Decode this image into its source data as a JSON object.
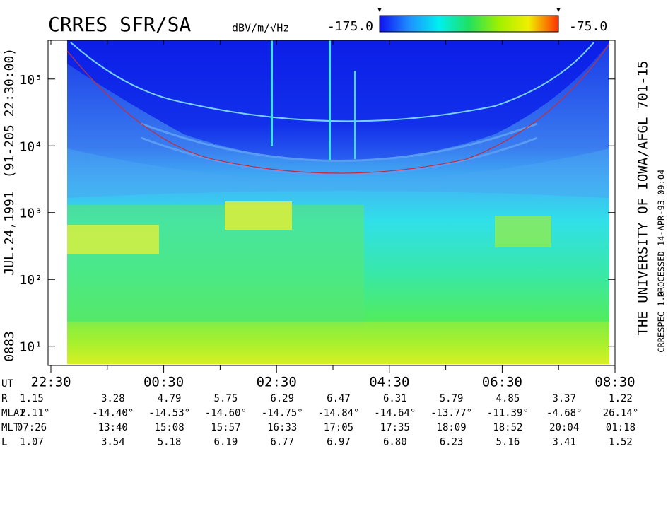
{
  "chart_data": {
    "type": "spectrogram",
    "title": "CRRES SFR/SA",
    "colorbar": {
      "label": "dBV/m/√Hz",
      "clim": [
        -175,
        -75
      ],
      "ticks": [
        {
          "value": -175,
          "label": "-175.0"
        },
        {
          "value": -75,
          "label": "-75.0"
        }
      ],
      "colors": [
        "#1010f0",
        "#1e90ff",
        "#00f0f0",
        "#20e060",
        "#a0f000",
        "#f0f000",
        "#ff3000"
      ]
    },
    "left_labels": [
      "0883",
      "JUL.24,1991",
      "(91-205 22:30:00)"
    ],
    "right_labels": [
      "THE UNIVERSITY OF IOWA/AFGL 701-15",
      "PROCESSED 14-APR-93  09:04",
      "CRRESPEC 1.0"
    ],
    "log_y": true,
    "ylim": [
      5.4,
      380000
    ],
    "yticks": [
      {
        "value": 10,
        "label": "10¹"
      },
      {
        "value": 100,
        "label": "10²"
      },
      {
        "value": 1000,
        "label": "10³"
      },
      {
        "value": 10000,
        "label": "10⁴"
      },
      {
        "value": 100000,
        "label": "10⁵"
      }
    ],
    "categories": [
      "22:30",
      null,
      "00:30",
      null,
      "02:30",
      null,
      "04:30",
      null,
      "06:30",
      null,
      "08:30"
    ],
    "ephemeris": {
      "time_label": "UT",
      "rows": [
        {
          "name": "R",
          "values": [
            "1.15",
            "3.28",
            "4.79",
            "5.75",
            "6.29",
            "6.47",
            "6.31",
            "5.79",
            "4.85",
            "3.37",
            "1.22"
          ]
        },
        {
          "name": "MLAT",
          "values": [
            "-2.11°",
            "-14.40°",
            "-14.53°",
            "-14.60°",
            "-14.75°",
            "-14.84°",
            "-14.64°",
            "-13.77°",
            "-11.39°",
            "-4.68°",
            "26.14°"
          ]
        },
        {
          "name": "MLT",
          "values": [
            "07:26",
            "13:40",
            "15:08",
            "15:57",
            "16:33",
            "17:05",
            "17:35",
            "18:09",
            "18:52",
            "20:04",
            "01:18"
          ]
        },
        {
          "name": "L",
          "values": [
            "1.07",
            "3.54",
            "5.18",
            "6.19",
            "6.77",
            "6.97",
            "6.80",
            "6.23",
            "5.16",
            "3.41",
            "1.52"
          ]
        }
      ]
    }
  }
}
